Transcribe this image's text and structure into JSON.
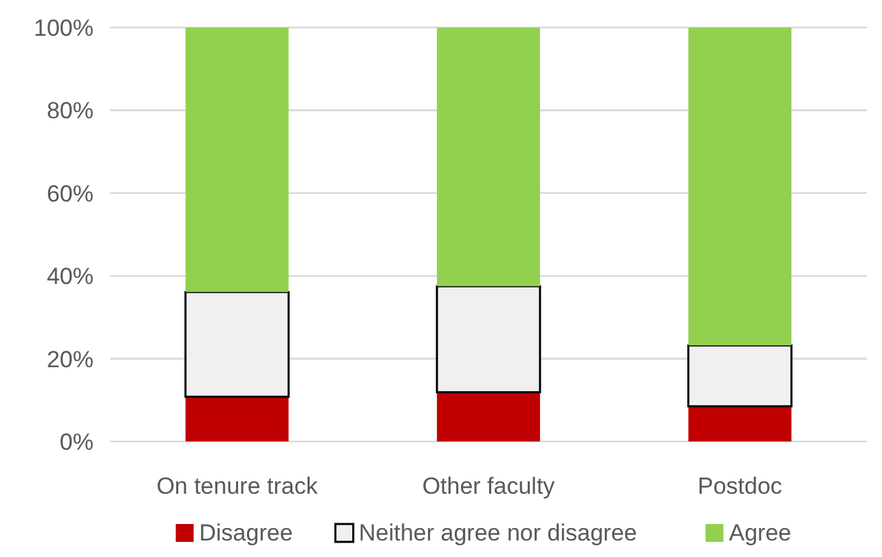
{
  "chart_data": {
    "type": "bar",
    "stacked": true,
    "categories": [
      "On tenure track",
      "Other faculty",
      "Postdoc"
    ],
    "series": [
      {
        "name": "Disagree",
        "color": "#c00000",
        "values": [
          10.8,
          11.9,
          8.5
        ]
      },
      {
        "name": "Neither agree nor disagree",
        "color": "#f0f0f0",
        "values": [
          25.3,
          25.6,
          14.7
        ]
      },
      {
        "name": "Agree",
        "color": "#92d050",
        "values": [
          63.9,
          62.5,
          76.8
        ]
      }
    ],
    "ylim": [
      0,
      100
    ],
    "yticks": [
      {
        "value": 0,
        "label": "0%"
      },
      {
        "value": 20,
        "label": "20%"
      },
      {
        "value": 40,
        "label": "40%"
      },
      {
        "value": 60,
        "label": "60%"
      },
      {
        "value": 80,
        "label": "80%"
      },
      {
        "value": 100,
        "label": "100%"
      }
    ],
    "grid": "y",
    "legend": "bottom"
  }
}
